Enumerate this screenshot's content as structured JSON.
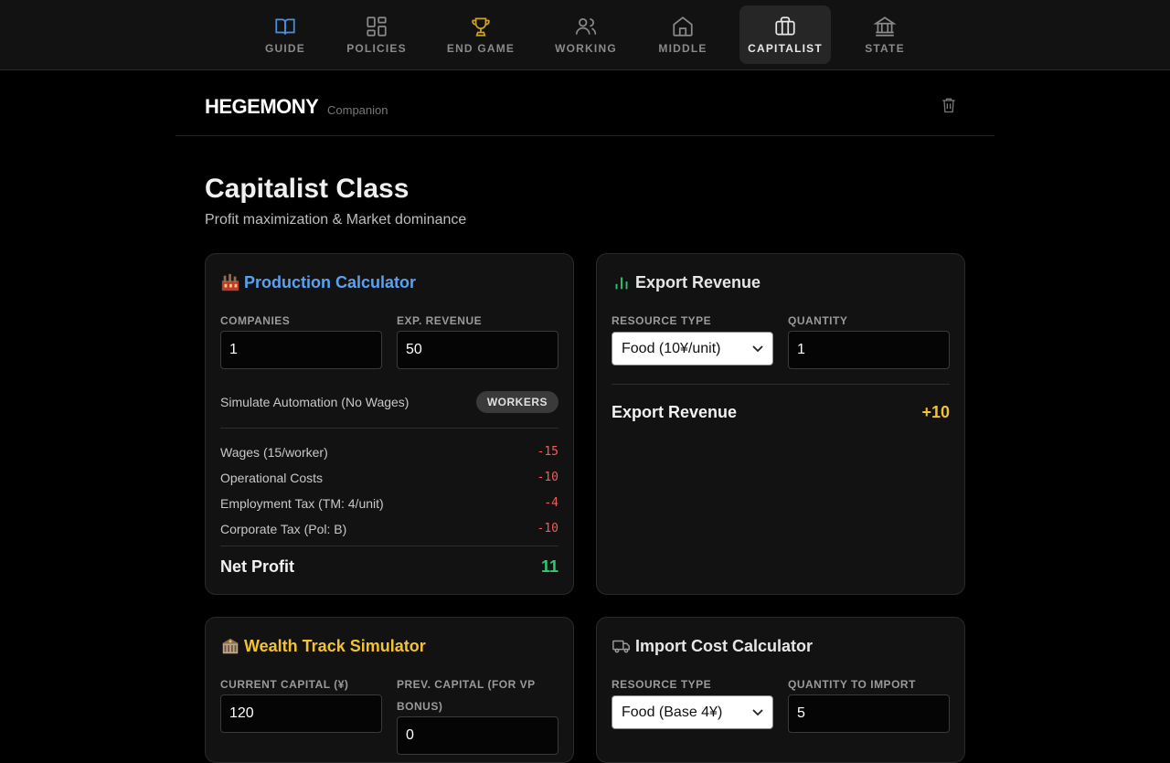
{
  "nav": {
    "tabs": [
      {
        "label": "GUIDE",
        "icon": "book-icon",
        "color": "#4a90e2"
      },
      {
        "label": "POLICIES",
        "icon": "grid-icon",
        "color": "#8a8a8a"
      },
      {
        "label": "END GAME",
        "icon": "trophy-icon",
        "color": "#c9a227"
      },
      {
        "label": "WORKING",
        "icon": "users-icon",
        "color": "#8a8a8a"
      },
      {
        "label": "MIDDLE",
        "icon": "home-icon",
        "color": "#8a8a8a"
      },
      {
        "label": "CAPITALIST",
        "icon": "briefcase-icon",
        "color": "#e8e8e8",
        "active": true
      },
      {
        "label": "STATE",
        "icon": "bank-icon",
        "color": "#8a8a8a"
      }
    ]
  },
  "header": {
    "brand": "HEGEMONY",
    "brand_sub": "Companion"
  },
  "page": {
    "title": "Capitalist Class",
    "subtitle": "Profit maximization & Market dominance"
  },
  "production": {
    "title": "Production Calculator",
    "title_color": "#5aa2f0",
    "companies_label": "COMPANIES",
    "companies_value": "1",
    "revenue_label": "EXP. REVENUE",
    "revenue_value": "50",
    "automation_label": "Simulate Automation (No Wages)",
    "automation_toggle": "WORKERS",
    "rows": [
      {
        "label": "Wages (15/worker)",
        "value": "-15"
      },
      {
        "label": "Operational Costs",
        "value": "-10"
      },
      {
        "label": "Employment Tax (TM: 4/unit)",
        "value": "-4"
      },
      {
        "label": "Corporate Tax (Pol: B)",
        "value": "-10"
      }
    ],
    "net_label": "Net Profit",
    "net_value": "11",
    "net_color": "#2ecc71"
  },
  "export": {
    "title": "Export Revenue",
    "resource_label": "RESOURCE TYPE",
    "resource_value": "Food (10¥/unit)",
    "quantity_label": "QUANTITY",
    "quantity_value": "1",
    "total_label": "Export Revenue",
    "total_value": "+10",
    "total_color": "#f1c232"
  },
  "wealth": {
    "title": "Wealth Track Simulator",
    "title_color": "#f1c232",
    "capital_label": "CURRENT CAPITAL (¥)",
    "capital_value": "120",
    "prev_label": "PREV. CAPITAL (FOR VP BONUS)",
    "prev_value": "0"
  },
  "import": {
    "title": "Import Cost Calculator",
    "resource_label": "RESOURCE TYPE",
    "resource_value": "Food (Base 4¥)",
    "quantity_label": "QUANTITY TO IMPORT",
    "quantity_value": "5"
  }
}
